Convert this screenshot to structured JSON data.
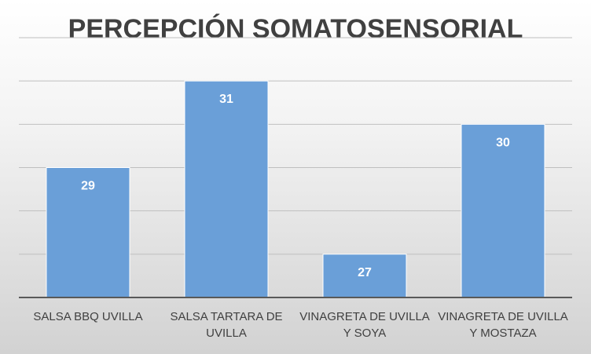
{
  "chart_data": {
    "type": "bar",
    "title": "PERCEPCIÓN SOMATOSENSORIAL",
    "categories": [
      [
        "SALSA BBQ UVILLA"
      ],
      [
        "SALSA TARTARA DE",
        "UVILLA"
      ],
      [
        "VINAGRETA DE UVILLA",
        "Y SOYA"
      ],
      [
        "VINAGRETA DE UVILLA",
        "Y MOSTAZA"
      ]
    ],
    "values": [
      29,
      31,
      27,
      30
    ],
    "data_labels": [
      "29",
      "31",
      "27",
      "30"
    ],
    "ylim": [
      26,
      32
    ],
    "grid": true,
    "bar_color": "#6a9fd8",
    "bar_edge_color": "#ffffff",
    "data_label_color": "#ffffff"
  }
}
